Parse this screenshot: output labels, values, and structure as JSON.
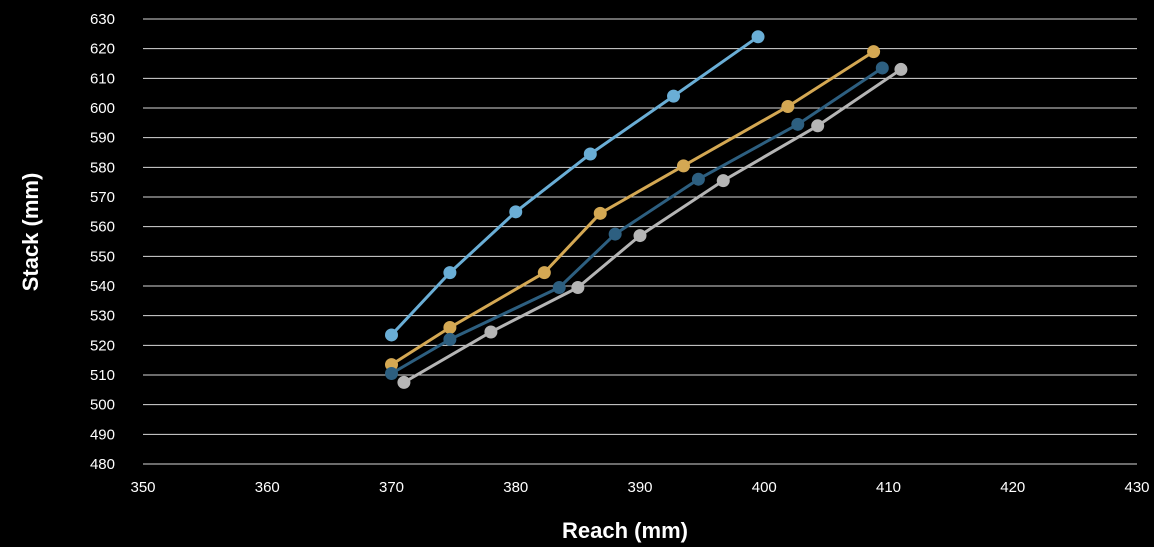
{
  "chart_data": {
    "type": "line",
    "title": "",
    "xlabel": "Reach (mm)",
    "ylabel": "Stack (mm)",
    "xlim": [
      350,
      430
    ],
    "ylim": [
      480,
      630
    ],
    "xticks": [
      350,
      360,
      370,
      380,
      390,
      400,
      410,
      420,
      430
    ],
    "yticks": [
      480,
      490,
      500,
      510,
      520,
      530,
      540,
      550,
      560,
      570,
      580,
      590,
      600,
      610,
      620,
      630
    ],
    "grid": "horizontal",
    "legend": "none",
    "series": [
      {
        "color": "#6aaed6",
        "points": [
          [
            370,
            523.5
          ],
          [
            374.7,
            544.5
          ],
          [
            380,
            565
          ],
          [
            386,
            584.5
          ],
          [
            392.7,
            604
          ],
          [
            399.5,
            624
          ]
        ]
      },
      {
        "color": "#d4a853",
        "points": [
          [
            370,
            513.5
          ],
          [
            374.7,
            526
          ],
          [
            382.3,
            544.5
          ],
          [
            386.8,
            564.5
          ],
          [
            393.5,
            580.5
          ],
          [
            401.9,
            600.5
          ],
          [
            408.8,
            619
          ]
        ]
      },
      {
        "color": "#2d5f80",
        "points": [
          [
            370,
            510.5
          ],
          [
            374.7,
            522
          ],
          [
            383.5,
            539.5
          ],
          [
            388,
            557.5
          ],
          [
            394.7,
            576
          ],
          [
            402.7,
            594.5
          ],
          [
            409.5,
            613.5
          ]
        ]
      },
      {
        "color": "#b5b5b5",
        "points": [
          [
            371,
            507.5
          ],
          [
            378,
            524.5
          ],
          [
            385,
            539.5
          ],
          [
            390,
            557
          ],
          [
            396.7,
            575.5
          ],
          [
            404.3,
            594
          ],
          [
            411,
            613
          ]
        ]
      }
    ]
  }
}
